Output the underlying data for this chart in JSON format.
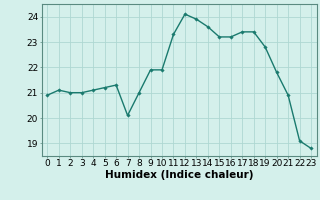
{
  "x": [
    0,
    1,
    2,
    3,
    4,
    5,
    6,
    7,
    8,
    9,
    10,
    11,
    12,
    13,
    14,
    15,
    16,
    17,
    18,
    19,
    20,
    21,
    22,
    23
  ],
  "y": [
    20.9,
    21.1,
    21.0,
    21.0,
    21.1,
    21.2,
    21.3,
    20.1,
    21.0,
    21.9,
    21.9,
    23.3,
    24.1,
    23.9,
    23.6,
    23.2,
    23.2,
    23.4,
    23.4,
    22.8,
    21.8,
    20.9,
    19.1,
    18.8
  ],
  "line_color": "#1a7a6e",
  "marker": "D",
  "marker_size": 1.8,
  "linewidth": 1.0,
  "bg_color": "#d4f0eb",
  "grid_color": "#aed8d2",
  "xlabel": "Humidex (Indice chaleur)",
  "ylim": [
    18.5,
    24.5
  ],
  "xlim": [
    -0.5,
    23.5
  ],
  "yticks": [
    19,
    20,
    21,
    22,
    23,
    24
  ],
  "xlabel_fontsize": 7.5,
  "tick_fontsize": 6.5,
  "spine_color": "#5a8a80"
}
